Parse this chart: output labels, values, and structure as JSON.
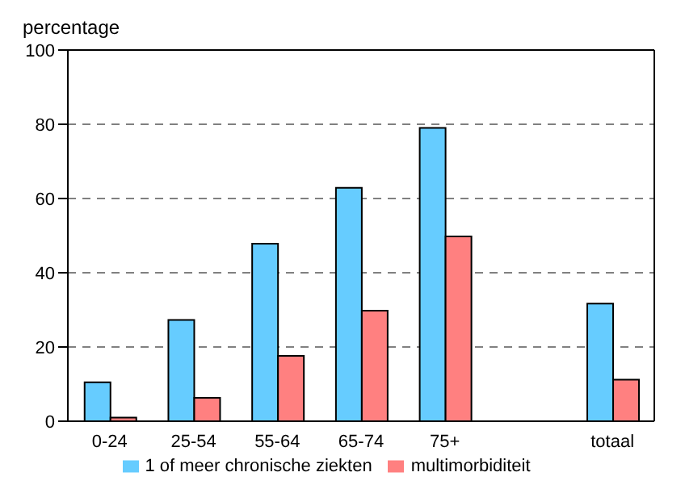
{
  "chart_data": {
    "type": "bar",
    "ylabel": "percentage",
    "categories": [
      "0-24",
      "25-54",
      "55-64",
      "65-74",
      "75+",
      null,
      "totaal"
    ],
    "series": [
      {
        "name": "1 of meer chronische ziekten",
        "color": "#66ccff",
        "values": [
          10.5,
          27.3,
          47.8,
          62.9,
          79,
          null,
          31.7
        ]
      },
      {
        "name": "multimorbiditeit",
        "color": "#ff8080",
        "values": [
          1,
          6.3,
          17.6,
          29.8,
          49.8,
          null,
          11.2
        ]
      }
    ],
    "ylim": [
      0,
      100
    ],
    "yticks": [
      0,
      20,
      40,
      60,
      80,
      100
    ],
    "grid": "y",
    "legend": "bottom"
  }
}
